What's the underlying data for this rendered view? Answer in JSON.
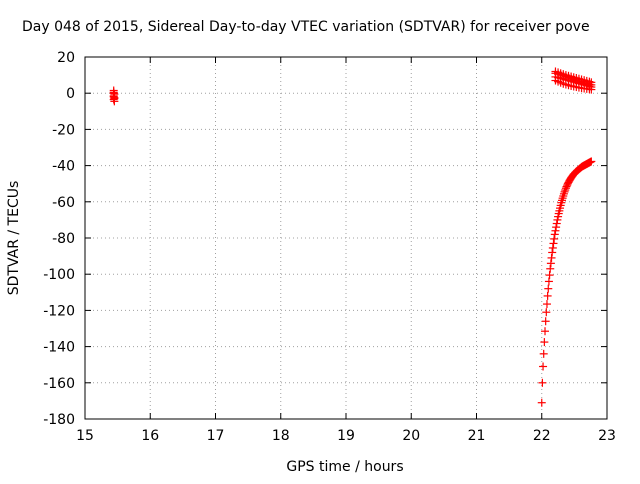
{
  "chart_data": {
    "type": "scatter",
    "title": "Day 048 of 2015, Sidereal Day-to-day VTEC variation (SDTVAR) for receiver pove",
    "xlabel": "GPS time / hours",
    "ylabel": "SDTVAR / TECUs",
    "xlim": [
      15,
      23
    ],
    "ylim": [
      -180,
      20
    ],
    "xticks": [
      15,
      16,
      17,
      18,
      19,
      20,
      21,
      22,
      23
    ],
    "yticks": [
      20,
      0,
      -20,
      -40,
      -60,
      -80,
      -100,
      -120,
      -140,
      -160,
      -180
    ],
    "grid": true,
    "marker": "plus",
    "series": [
      {
        "name": "SDTVAR",
        "color": "#ff0000",
        "x": [
          15.44,
          15.44,
          15.45,
          15.44,
          15.45,
          15.44,
          15.45,
          15.44,
          15.44,
          15.45,
          22.21,
          22.25,
          22.29,
          22.33,
          22.37,
          22.41,
          22.45,
          22.49,
          22.53,
          22.57,
          22.61,
          22.65,
          22.69,
          22.73,
          22.76,
          22.21,
          22.25,
          22.29,
          22.33,
          22.37,
          22.41,
          22.45,
          22.49,
          22.53,
          22.57,
          22.61,
          22.65,
          22.69,
          22.73,
          22.76,
          22.21,
          22.25,
          22.29,
          22.33,
          22.37,
          22.41,
          22.45,
          22.49,
          22.53,
          22.57,
          22.61,
          22.65,
          22.69,
          22.73,
          22.76,
          22.21,
          22.25,
          22.29,
          22.33,
          22.37,
          22.41,
          22.45,
          22.49,
          22.53,
          22.57,
          22.61,
          22.65,
          22.69,
          22.73,
          22.76,
          22.0,
          22.01,
          22.02,
          22.03,
          22.04,
          22.05,
          22.06,
          22.07,
          22.08,
          22.09,
          22.1,
          22.11,
          22.12,
          22.13,
          22.14,
          22.15,
          22.16,
          22.17,
          22.18,
          22.19,
          22.2,
          22.21,
          22.22,
          22.23,
          22.24,
          22.25,
          22.26,
          22.27,
          22.28,
          22.29,
          22.3,
          22.31,
          22.32,
          22.33,
          22.34,
          22.35,
          22.36,
          22.37,
          22.38,
          22.39,
          22.4,
          22.41,
          22.42,
          22.43,
          22.44,
          22.45,
          22.46,
          22.47,
          22.48,
          22.49,
          22.5,
          22.51,
          22.52,
          22.53,
          22.54,
          22.55,
          22.56,
          22.57,
          22.58,
          22.59,
          22.6,
          22.61,
          22.62,
          22.63,
          22.64,
          22.65,
          22.66,
          22.67,
          22.68,
          22.69,
          22.7,
          22.71,
          22.72,
          22.73,
          22.74,
          22.75,
          22.76
        ],
        "y": [
          1.5,
          0.5,
          -0.5,
          -1.5,
          -2.5,
          -3.5,
          -4.5,
          0,
          -2,
          -3,
          12,
          11.5,
          11,
          10.5,
          10,
          9.6,
          9.2,
          8.8,
          8.4,
          8,
          7.6,
          7.2,
          6.8,
          6.4,
          6,
          9,
          8.6,
          8.2,
          7.8,
          7.4,
          7,
          6.6,
          6.2,
          5.8,
          5.4,
          5,
          4.6,
          4.2,
          3.8,
          3.4,
          7,
          6.4,
          5.8,
          5.2,
          4.8,
          4.4,
          4,
          3.7,
          3.4,
          3.1,
          2.8,
          2.6,
          2.4,
          2.2,
          2,
          11,
          10.5,
          10,
          9.5,
          9,
          8.5,
          8,
          7.5,
          7,
          6.6,
          6.2,
          5.8,
          5.4,
          5,
          4.6,
          -171,
          -160,
          -151,
          -144,
          -137.5,
          -131.5,
          -126,
          -121,
          -116.5,
          -112,
          -108,
          -104,
          -100.5,
          -97,
          -94,
          -91,
          -88,
          -85.5,
          -83,
          -80.5,
          -78,
          -76,
          -74,
          -72,
          -70,
          -68.2,
          -66.5,
          -65,
          -63.5,
          -62,
          -60.5,
          -59.2,
          -58,
          -56.8,
          -55.6,
          -54.5,
          -53.5,
          -52.5,
          -51.6,
          -50.8,
          -50,
          -49.3,
          -48.6,
          -48,
          -47.4,
          -46.8,
          -46.3,
          -45.8,
          -45.3,
          -44.8,
          -44.4,
          -44,
          -43.6,
          -43.2,
          -42.9,
          -42.6,
          -42.3,
          -42,
          -41.7,
          -41.4,
          -41.1,
          -40.8,
          -40.5,
          -40.3,
          -40.1,
          -39.9,
          -39.7,
          -39.5,
          -39.3,
          -39.1,
          -38.9,
          -38.7,
          -38.5,
          -38.3,
          -38.1,
          -37.9,
          -37.7
        ]
      }
    ]
  }
}
